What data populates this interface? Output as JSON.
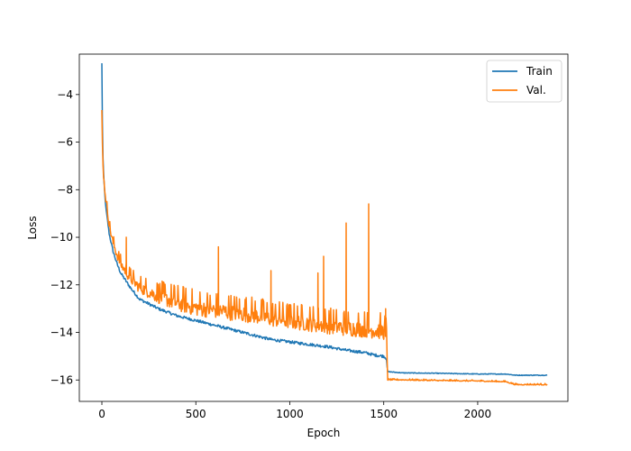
{
  "chart_data": {
    "type": "line",
    "title": "",
    "xlabel": "Epoch",
    "ylabel": "Loss",
    "xlim": [
      -120,
      2480
    ],
    "ylim": [
      -16.9,
      -2.3
    ],
    "x_ticks": [
      0,
      500,
      1000,
      1500,
      2000
    ],
    "y_ticks": [
      -16,
      -14,
      -12,
      -10,
      -8,
      -6,
      -4
    ],
    "x_tick_labels": [
      "0",
      "500",
      "1000",
      "1500",
      "2000"
    ],
    "y_tick_labels": [
      "−16",
      "−14",
      "−12",
      "−10",
      "−8",
      "−6",
      "−4"
    ],
    "legend": {
      "position": "upper right",
      "entries": [
        "Train",
        "Val."
      ]
    },
    "series": [
      {
        "name": "Train",
        "color": "#1f77b4",
        "x": [
          0,
          2,
          5,
          10,
          20,
          40,
          60,
          80,
          100,
          150,
          200,
          300,
          400,
          500,
          600,
          700,
          800,
          900,
          1000,
          1100,
          1200,
          1300,
          1400,
          1450,
          1500,
          1515,
          1520,
          1600,
          1800,
          2000,
          2150,
          2200,
          2250,
          2370
        ],
        "y": [
          -2.7,
          -4.5,
          -6.5,
          -7.5,
          -8.7,
          -9.9,
          -10.6,
          -11.1,
          -11.5,
          -12.1,
          -12.6,
          -13.0,
          -13.3,
          -13.5,
          -13.7,
          -13.9,
          -14.1,
          -14.3,
          -14.4,
          -14.5,
          -14.6,
          -14.75,
          -14.85,
          -14.95,
          -15.0,
          -15.1,
          -15.65,
          -15.7,
          -15.72,
          -15.75,
          -15.75,
          -15.8,
          -15.8,
          -15.8
        ]
      },
      {
        "name": "Val.",
        "color": "#ff7f0e",
        "x": [
          0,
          2,
          5,
          10,
          20,
          40,
          60,
          80,
          100,
          150,
          200,
          300,
          400,
          500,
          600,
          700,
          800,
          900,
          1000,
          1100,
          1200,
          1300,
          1400,
          1450,
          1500,
          1515,
          1520,
          1600,
          1800,
          2000,
          2150,
          2200,
          2250,
          2370
        ],
        "y": [
          -4.7,
          -5.8,
          -6.8,
          -7.6,
          -8.4,
          -9.6,
          -10.3,
          -10.8,
          -11.2,
          -11.8,
          -12.2,
          -12.6,
          -12.9,
          -13.1,
          -13.2,
          -13.3,
          -13.4,
          -13.55,
          -13.65,
          -13.75,
          -13.85,
          -13.95,
          -14.0,
          -14.05,
          -14.1,
          -14.2,
          -16.0,
          -16.0,
          -16.03,
          -16.05,
          -16.08,
          -16.2,
          -16.2,
          -16.2
        ],
        "noise_amplitude": 0.7,
        "spikes": [
          {
            "x": 130,
            "y": -10.0
          },
          {
            "x": 620,
            "y": -10.4
          },
          {
            "x": 900,
            "y": -11.4
          },
          {
            "x": 1150,
            "y": -11.5
          },
          {
            "x": 1180,
            "y": -10.8
          },
          {
            "x": 1300,
            "y": -9.4
          },
          {
            "x": 1420,
            "y": -8.6
          },
          {
            "x": 1510,
            "y": -13.0
          }
        ]
      }
    ]
  }
}
